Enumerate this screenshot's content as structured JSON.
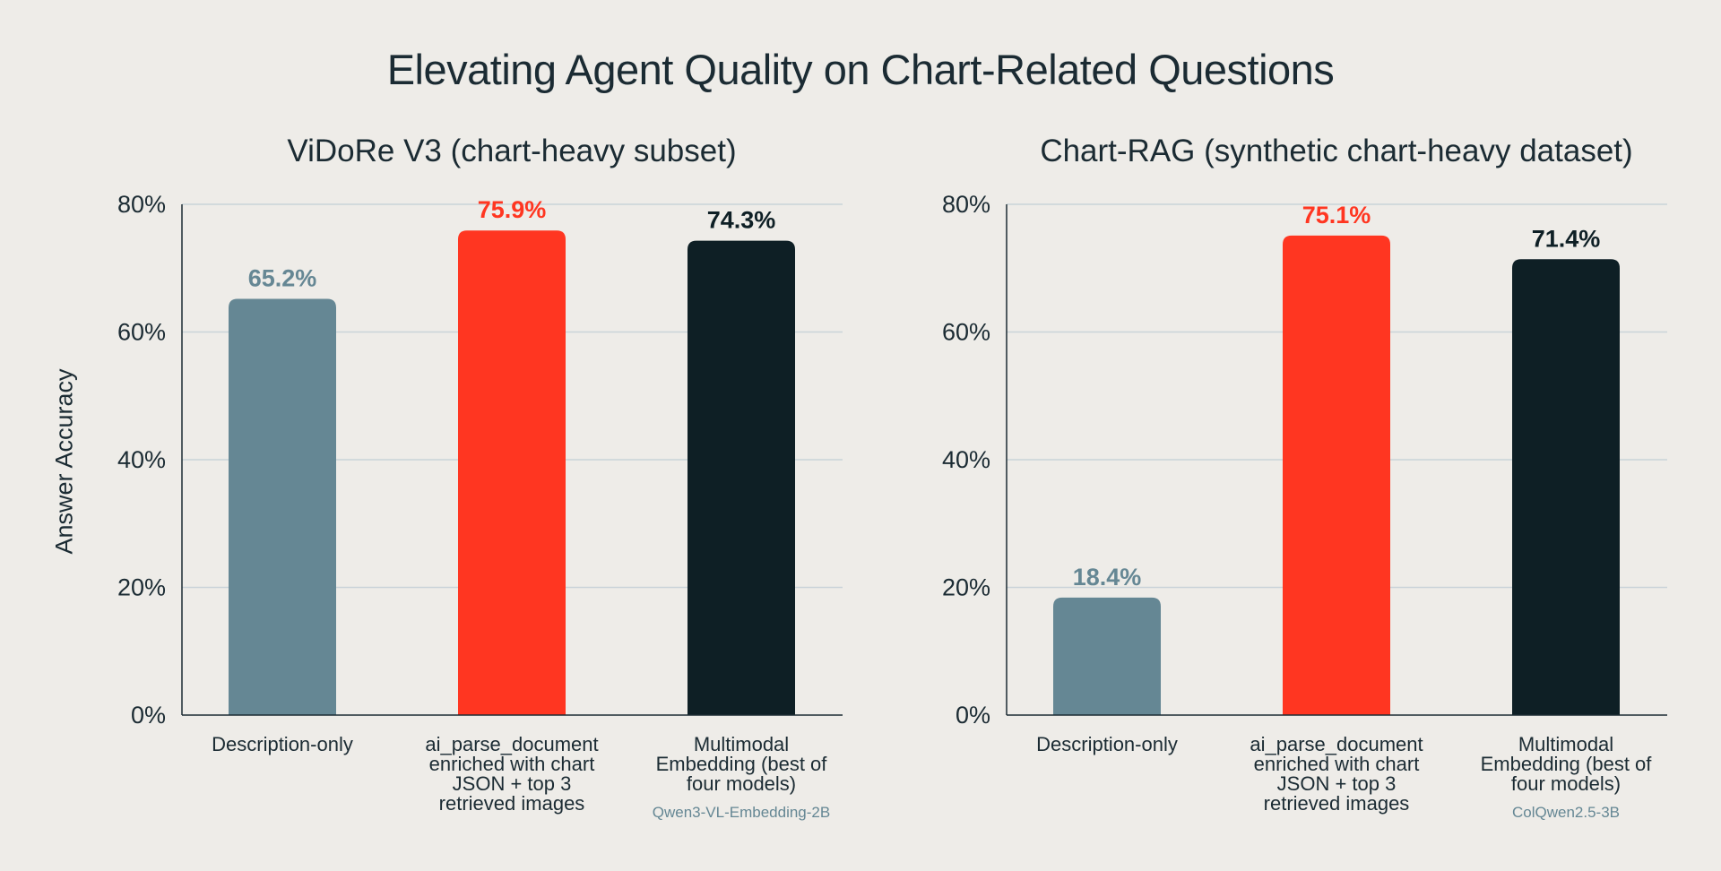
{
  "title": "Elevating Agent Quality on Chart-Related Questions",
  "ylabel": "Answer Accuracy",
  "colors": {
    "description_only": "#658794",
    "ai_parse_document": "#FF3621",
    "multimodal": "#0E1F25",
    "grid": "#C9D3D8",
    "axis": "#1B2B33",
    "text": "#1B2B33",
    "sub_label": "#658794"
  },
  "chart_data": [
    {
      "type": "bar",
      "title": "ViDoRe V3 (chart-heavy subset)",
      "ylabel": "Answer Accuracy",
      "ylim": [
        0,
        80
      ],
      "yticks": [
        "0%",
        "20%",
        "40%",
        "60%",
        "80%"
      ],
      "grid": true,
      "categories": [
        {
          "lines": [
            "Description-only"
          ],
          "sublabel": ""
        },
        {
          "lines": [
            "ai_parse_document",
            "enriched with chart",
            "JSON + top 3",
            "retrieved images"
          ],
          "sublabel": ""
        },
        {
          "lines": [
            "Multimodal",
            "Embedding (best of",
            "four models)"
          ],
          "sublabel": "Qwen3-VL-Embedding-2B"
        }
      ],
      "values": [
        65.2,
        75.9,
        74.3
      ],
      "value_labels": [
        "65.2%",
        "75.9%",
        "74.3%"
      ],
      "bar_colors": [
        "#658794",
        "#FF3621",
        "#0E1F25"
      ],
      "label_colors": [
        "#658794",
        "#FF3621",
        "#0E1F25"
      ]
    },
    {
      "type": "bar",
      "title": "Chart-RAG (synthetic chart-heavy dataset)",
      "ylabel": "",
      "ylim": [
        0,
        80
      ],
      "yticks": [
        "0%",
        "20%",
        "40%",
        "60%",
        "80%"
      ],
      "grid": true,
      "categories": [
        {
          "lines": [
            "Description-only"
          ],
          "sublabel": ""
        },
        {
          "lines": [
            "ai_parse_document",
            "enriched with chart",
            "JSON + top 3",
            "retrieved images"
          ],
          "sublabel": ""
        },
        {
          "lines": [
            "Multimodal",
            "Embedding (best of",
            "four models)"
          ],
          "sublabel": "ColQwen2.5-3B"
        }
      ],
      "values": [
        18.4,
        75.1,
        71.4
      ],
      "value_labels": [
        "18.4%",
        "75.1%",
        "71.4%"
      ],
      "bar_colors": [
        "#658794",
        "#FF3621",
        "#0E1F25"
      ],
      "label_colors": [
        "#658794",
        "#FF3621",
        "#0E1F25"
      ]
    }
  ]
}
